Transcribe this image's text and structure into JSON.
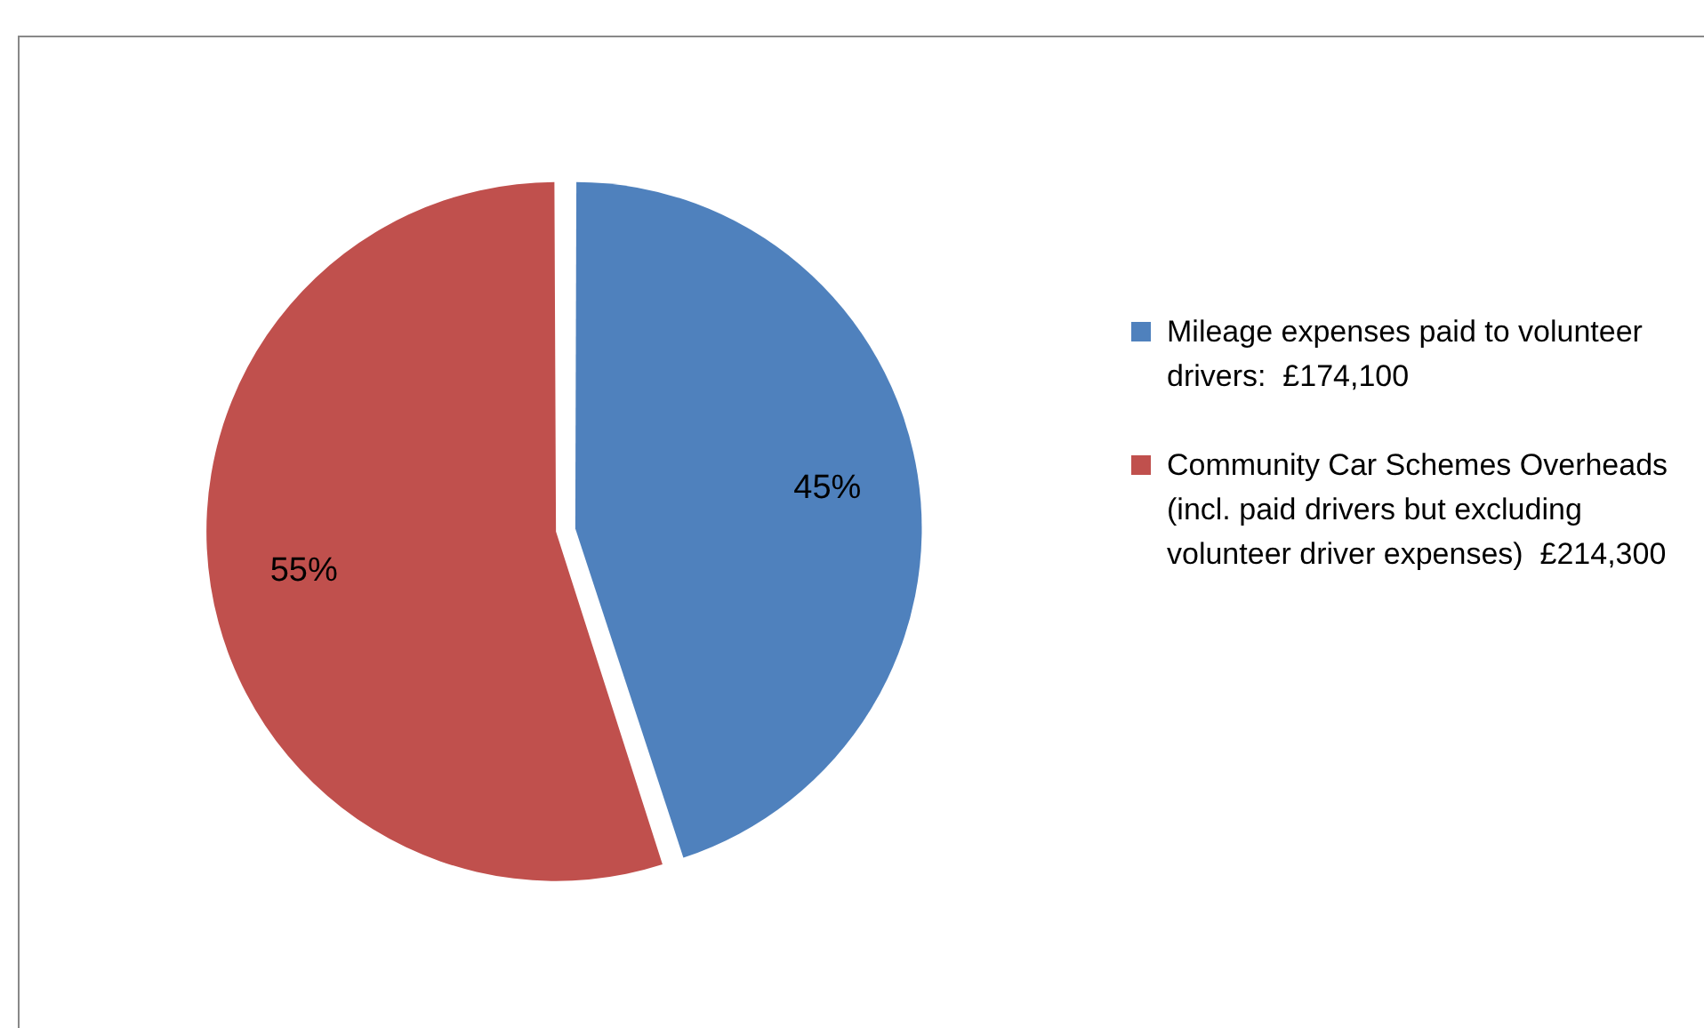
{
  "chart_data": {
    "type": "pie",
    "categories": [
      "Mileage expenses paid to volunteer drivers:  £174,100",
      "Community Car Schemes Overheads (incl. paid drivers but excluding volunteer driver expenses)  £214,300"
    ],
    "values": [
      45,
      55
    ],
    "colors": [
      "#4f81bd",
      "#c0504d"
    ],
    "value_labels": [
      "45%",
      "55%"
    ],
    "legend": "right"
  }
}
